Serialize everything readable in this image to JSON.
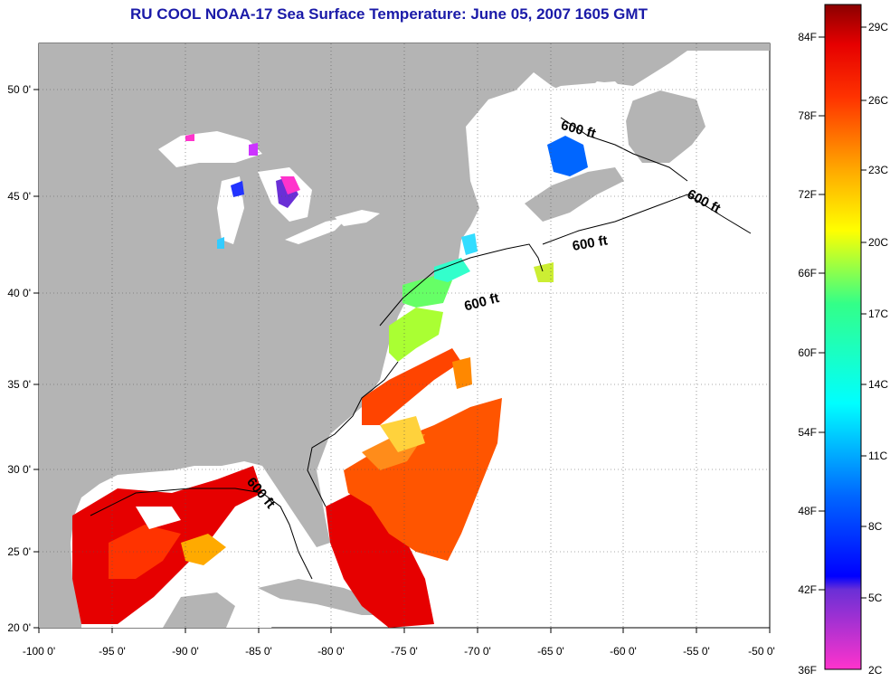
{
  "title": "RU COOL  NOAA-17  Sea Surface Temperature:  June 05, 2007 1605 GMT",
  "map": {
    "lon_range": [
      -100,
      -50
    ],
    "lat_range": [
      20,
      52.5
    ],
    "grid": true,
    "lon_ticks": [
      "-100 0'",
      "-95 0'",
      "-90 0'",
      "-85 0'",
      "-80 0'",
      "-75 0'",
      "-70 0'",
      "-65 0'",
      "-60 0'",
      "-55 0'",
      "-50 0'"
    ],
    "lat_ticks": [
      "20 0'",
      "25 0'",
      "30 0'",
      "35 0'",
      "40 0'",
      "45 0'",
      "50 0'"
    ],
    "contour_labels": [
      "600 ft",
      "600 ft",
      "600 ft",
      "600 ft",
      "600 ft"
    ],
    "land_color": "#b4b4b4",
    "ocean_color": "#ffffff"
  },
  "colorbar": {
    "fahrenheit_labels": [
      "84F",
      "78F",
      "72F",
      "66F",
      "60F",
      "54F",
      "48F",
      "42F",
      "36F"
    ],
    "celsius_labels": [
      "29C",
      "26C",
      "23C",
      "20C",
      "17C",
      "14C",
      "11C",
      "8C",
      "5C",
      "2C"
    ],
    "range_c": [
      2,
      30
    ]
  }
}
